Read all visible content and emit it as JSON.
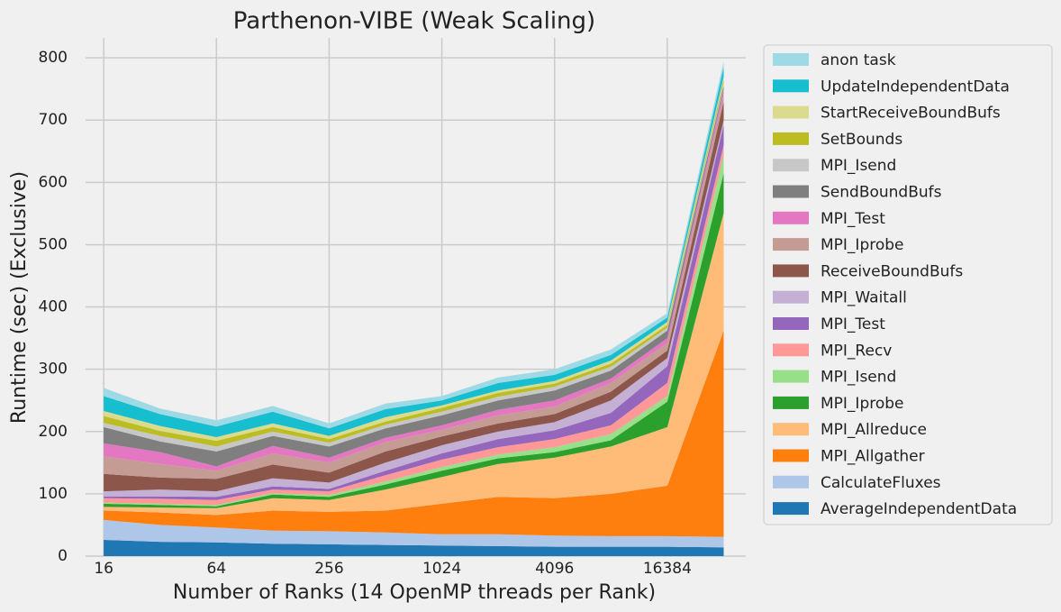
{
  "chart_data": {
    "type": "stacked_area",
    "title": "Parthenon-VIBE (Weak Scaling)",
    "xlabel": "Number of Ranks (14 OpenMP threads per Rank)",
    "ylabel": "Runtime (sec) (Exclusive)",
    "x": [
      16,
      32,
      64,
      128,
      256,
      512,
      1024,
      2048,
      4096,
      8192,
      16384,
      32768
    ],
    "xscale": "log2",
    "xlim": [
      12.8,
      43000
    ],
    "xticks": [
      16,
      64,
      256,
      1024,
      4096,
      16384
    ],
    "ylim": [
      0,
      832
    ],
    "yticks": [
      0,
      100,
      200,
      300,
      400,
      500,
      600,
      700,
      800
    ],
    "grid": true,
    "legend": "outside-right",
    "series": [
      {
        "name": "AverageIndependentData",
        "color": "#1f77b4",
        "values": [
          26,
          23,
          22,
          20,
          19,
          18,
          17,
          16,
          15,
          15,
          15,
          14
        ]
      },
      {
        "name": "CalculateFluxes",
        "color": "#aec7e8",
        "values": [
          32,
          27,
          24,
          21,
          21,
          20,
          18,
          19,
          18,
          17,
          17,
          17
        ]
      },
      {
        "name": "MPI_Allgather",
        "color": "#ff7f0e",
        "values": [
          15,
          20,
          20,
          32,
          31,
          35,
          49,
          60,
          60,
          68,
          81,
          331
        ]
      },
      {
        "name": "MPI_Allreduce",
        "color": "#ffbb78",
        "values": [
          6,
          8,
          11,
          20,
          19,
          34,
          43,
          53,
          65,
          76,
          94,
          189
        ]
      },
      {
        "name": "MPI_Iprobe",
        "color": "#2ca02c",
        "values": [
          5,
          4,
          3,
          6,
          5,
          8,
          10,
          9,
          9,
          10,
          41,
          64
        ]
      },
      {
        "name": "MPI_Isend",
        "color": "#98df8a",
        "values": [
          2,
          2,
          2,
          2,
          3,
          5,
          6,
          6,
          8,
          10,
          9,
          30
        ]
      },
      {
        "name": "MPI_Recv",
        "color": "#ff9896",
        "values": [
          7,
          8,
          8,
          6,
          6,
          10,
          12,
          12,
          13,
          14,
          21,
          15
        ]
      },
      {
        "name": "MPI_Test",
        "color": "#9467bd",
        "values": [
          3,
          4,
          5,
          5,
          4,
          7,
          10,
          13,
          14,
          20,
          27,
          33
        ]
      },
      {
        "name": "MPI_Waitall",
        "color": "#c5b0d5",
        "values": [
          8,
          11,
          9,
          13,
          10,
          13,
          13,
          12,
          13,
          20,
          13,
          7
        ]
      },
      {
        "name": "ReceiveBoundBufs",
        "color": "#8c564b",
        "values": [
          28,
          19,
          20,
          22,
          16,
          18,
          14,
          13,
          13,
          14,
          12,
          30
        ]
      },
      {
        "name": "MPI_Iprobe",
        "color": "#c49c94",
        "values": [
          28,
          22,
          13,
          18,
          16,
          15,
          11,
          13,
          12,
          14,
          12,
          12
        ]
      },
      {
        "name": "MPI_Test",
        "color": "#e377c2",
        "values": [
          21,
          19,
          7,
          12,
          8,
          7,
          7,
          9,
          10,
          7,
          8,
          8
        ]
      },
      {
        "name": "SendBoundBufs",
        "color": "#7f7f7f",
        "values": [
          26,
          17,
          24,
          16,
          18,
          15,
          16,
          15,
          16,
          13,
          12,
          5
        ]
      },
      {
        "name": "MPI_Isend",
        "color": "#c7c7c7",
        "values": [
          7,
          9,
          8,
          7,
          6,
          6,
          6,
          6,
          6,
          6,
          5,
          5
        ]
      },
      {
        "name": "SetBounds",
        "color": "#bcbd22",
        "values": [
          11,
          8,
          9,
          7,
          6,
          5,
          6,
          6,
          5,
          5,
          4,
          5
        ]
      },
      {
        "name": "StartReceiveBoundBufs",
        "color": "#dbdb8d",
        "values": [
          8,
          8,
          6,
          6,
          5,
          7,
          4,
          4,
          4,
          5,
          5,
          5
        ]
      },
      {
        "name": "UpdateIndependentData",
        "color": "#17becf",
        "values": [
          24,
          19,
          17,
          19,
          12,
          13,
          8,
          12,
          10,
          9,
          7,
          15
        ]
      },
      {
        "name": "anon task",
        "color": "#9edae5",
        "values": [
          13,
          9,
          10,
          9,
          8,
          9,
          7,
          9,
          9,
          9,
          7,
          10
        ]
      }
    ]
  }
}
